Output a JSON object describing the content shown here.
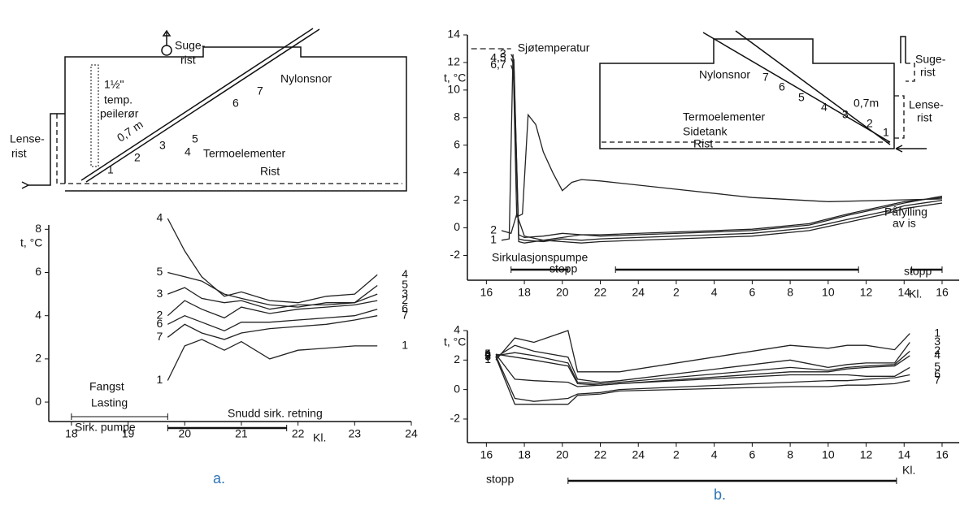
{
  "chart_data": [
    {
      "type": "line",
      "y_label": "t, °C",
      "x_label": "Kl.",
      "xlim": [
        17.6,
        24
      ],
      "xticks": [
        18,
        19,
        20,
        21,
        22,
        23,
        24
      ],
      "ylim": [
        -0.9,
        8.2
      ],
      "yticks": [
        0,
        2,
        4,
        6,
        8
      ],
      "x": [
        19.7,
        20.0,
        20.3,
        20.7,
        21.0,
        21.5,
        22.0,
        22.5,
        23.0,
        23.4
      ],
      "series": [
        {
          "name": "4",
          "color": "#222",
          "values": [
            8.5,
            7,
            5.8,
            4.9,
            5.1,
            4.7,
            4.6,
            4.9,
            5.0,
            5.9
          ]
        },
        {
          "name": "5",
          "color": "#222",
          "values": [
            6.0,
            5.8,
            5.6,
            5.0,
            4.8,
            4.5,
            4.4,
            4.6,
            4.6,
            5.4
          ]
        },
        {
          "name": "3",
          "color": "#222",
          "values": [
            5.0,
            5.3,
            4.8,
            4.6,
            4.7,
            4.3,
            4.5,
            4.5,
            4.6,
            5.0
          ]
        },
        {
          "name": "2",
          "color": "#222",
          "values": [
            4.0,
            4.7,
            4.3,
            3.9,
            4.4,
            4.1,
            4.3,
            4.4,
            4.5,
            4.7
          ]
        },
        {
          "name": "6",
          "color": "#222",
          "values": [
            3.6,
            4.0,
            3.7,
            3.3,
            3.7,
            3.7,
            3.8,
            3.9,
            4.0,
            4.3
          ]
        },
        {
          "name": "7",
          "color": "#222",
          "values": [
            3.0,
            3.6,
            3.2,
            2.9,
            3.2,
            3.4,
            3.5,
            3.6,
            3.8,
            4.0
          ]
        },
        {
          "name": "1",
          "color": "#222",
          "values": [
            1.0,
            2.6,
            2.9,
            2.4,
            2.8,
            2.0,
            2.4,
            2.5,
            2.6,
            2.6
          ]
        }
      ],
      "annotations": [
        "Fangst",
        "Lasting",
        "Sirk. pumpe",
        "Snudd sirk. retning"
      ],
      "intervals": [
        [
          18,
          19.7
        ],
        [
          19.7,
          21.8
        ]
      ]
    },
    {
      "type": "line",
      "y_label": "t, °C",
      "x_label": "Kl.",
      "xlim": [
        15,
        40.9
      ],
      "ylim": [
        -3.8,
        14
      ],
      "xticks": [
        16,
        18,
        20,
        22,
        24,
        {
          "value": 26,
          "label": "2"
        },
        {
          "value": 28,
          "label": "4"
        },
        {
          "value": 30,
          "label": "6"
        },
        {
          "value": 32,
          "label": "8"
        },
        {
          "value": 34,
          "label": "10"
        },
        {
          "value": 36,
          "label": "12"
        },
        {
          "value": 38,
          "label": "14"
        },
        {
          "value": 40,
          "label": "16"
        }
      ],
      "yticks": [
        -2,
        0,
        2,
        4,
        6,
        8,
        10,
        12,
        14
      ],
      "series": [
        {
          "name": "Sjøtemperatur",
          "color": "#222",
          "style": "dashed",
          "x": [
            15.2,
            17.3
          ],
          "values": [
            13,
            13
          ]
        },
        {
          "name": "1",
          "color": "#222",
          "x": [
            16.8,
            17.2,
            17.4,
            17.6,
            17.9,
            18.2,
            18.6,
            19,
            19.5,
            20,
            20.5,
            21,
            22,
            26,
            30,
            34,
            37,
            40
          ],
          "values": [
            -0.9,
            -0.8,
            12.6,
            0.8,
            1.0,
            8.2,
            7.5,
            5.5,
            4.0,
            2.7,
            3.3,
            3.5,
            3.4,
            2.8,
            2.2,
            1.9,
            2.0,
            2.1
          ]
        },
        {
          "name": "2",
          "color": "#222",
          "x": [
            16.8,
            17.3,
            17.6,
            18,
            19,
            20,
            21,
            22,
            30,
            33,
            35,
            37,
            38,
            40
          ],
          "values": [
            -0.2,
            -0.4,
            1.0,
            -0.6,
            -0.9,
            -0.7,
            -0.5,
            -0.6,
            -0.2,
            0.2,
            0.9,
            1.5,
            1.8,
            2.3
          ]
        },
        {
          "name": "3",
          "color": "#222",
          "x": [
            17.3,
            17.45,
            17.7,
            18,
            19,
            20,
            21,
            22,
            30,
            33,
            35,
            37,
            38,
            40
          ],
          "values": [
            12.6,
            12.2,
            -0.8,
            -0.9,
            -1.0,
            -0.8,
            -0.9,
            -0.8,
            -0.4,
            0.0,
            0.6,
            1.2,
            1.6,
            2.0
          ]
        },
        {
          "name": "4,5",
          "color": "#222",
          "x": [
            17.3,
            17.45,
            17.7,
            18,
            19,
            20,
            21,
            22,
            30,
            33,
            35,
            37,
            38,
            40
          ],
          "values": [
            12.3,
            11.8,
            -0.5,
            -0.7,
            -0.6,
            -0.4,
            -0.5,
            -0.5,
            -0.1,
            0.3,
            1.0,
            1.6,
            1.9,
            2.2
          ]
        },
        {
          "name": "6,7",
          "color": "#222",
          "x": [
            17.3,
            17.45,
            17.7,
            18,
            19,
            20,
            21,
            22,
            30,
            33,
            35,
            37,
            38,
            40
          ],
          "values": [
            11.8,
            11.2,
            -1.0,
            -1.1,
            -0.9,
            -1.0,
            -1.1,
            -1.0,
            -0.6,
            -0.2,
            0.4,
            1.0,
            1.4,
            1.8
          ]
        }
      ],
      "annotations": [
        "Sirkulasjonspumpe",
        "stopp",
        "stopp",
        "Påfylling",
        "av is"
      ],
      "intervals": [
        [
          17.3,
          20.3
        ],
        [
          22.8,
          35.6
        ],
        [
          38.4,
          40
        ]
      ]
    },
    {
      "type": "line",
      "y_label": "t, °C",
      "x_label": "Kl.",
      "xlim": [
        15,
        40.9
      ],
      "ylim": [
        -3.6,
        4
      ],
      "xticks": [
        16,
        18,
        20,
        22,
        24,
        {
          "value": 26,
          "label": "2"
        },
        {
          "value": 28,
          "label": "4"
        },
        {
          "value": 30,
          "label": "6"
        },
        {
          "value": 32,
          "label": "8"
        },
        {
          "value": 34,
          "label": "10"
        },
        {
          "value": 36,
          "label": "12"
        },
        {
          "value": 38,
          "label": "14"
        },
        {
          "value": 40,
          "label": "16"
        }
      ],
      "yticks": [
        -2,
        0,
        2,
        4
      ],
      "x": [
        16.5,
        17.5,
        18.5,
        20.3,
        20.8,
        22,
        23,
        32,
        34,
        35,
        36,
        37.5,
        38.3
      ],
      "series": [
        {
          "name": "1",
          "color": "#222",
          "values": [
            2.0,
            3.5,
            3.2,
            4.0,
            1.2,
            1.2,
            1.2,
            3.0,
            2.8,
            3.0,
            3.0,
            2.7,
            3.8
          ]
        },
        {
          "name": "3",
          "color": "#222",
          "values": [
            2.2,
            3.0,
            2.6,
            2.2,
            0.7,
            0.5,
            0.6,
            2.0,
            1.5,
            1.7,
            1.8,
            1.8,
            3.2
          ]
        },
        {
          "name": "2",
          "color": "#222",
          "values": [
            2.3,
            2.5,
            2.3,
            1.8,
            0.5,
            0.4,
            0.5,
            1.5,
            1.3,
            1.5,
            1.6,
            1.7,
            2.6
          ]
        },
        {
          "name": "4",
          "color": "#222",
          "values": [
            2.4,
            2.2,
            2.0,
            1.6,
            0.4,
            0.3,
            0.4,
            1.2,
            1.2,
            1.4,
            1.5,
            1.6,
            2.3
          ]
        },
        {
          "name": "5",
          "color": "#222",
          "values": [
            2.4,
            0.7,
            0.6,
            0.5,
            0.2,
            0.3,
            0.4,
            1.0,
            1.0,
            1.0,
            0.9,
            0.9,
            1.5
          ]
        },
        {
          "name": "6",
          "color": "#222",
          "values": [
            2.3,
            -0.6,
            -0.8,
            -0.6,
            -0.3,
            -0.2,
            0.0,
            0.5,
            0.6,
            0.6,
            0.7,
            0.8,
            1.0
          ]
        },
        {
          "name": "7",
          "color": "#222",
          "values": [
            2.2,
            -1.0,
            -1.0,
            -1.0,
            -0.4,
            -0.3,
            -0.1,
            0.2,
            0.2,
            0.3,
            0.3,
            0.4,
            0.6
          ]
        }
      ],
      "annotations": [
        "stopp"
      ],
      "intervals": [
        [
          20.3,
          37.6
        ]
      ]
    }
  ],
  "diagrams": [
    {
      "labels": [
        "Suge-",
        "rist",
        "Nylonsnor",
        "1½\"",
        "temp.",
        "peilerør",
        "Lense-",
        "rist",
        "0,7 m",
        "Termoelementer",
        "Rist",
        "1",
        "2",
        "3",
        "4",
        "5",
        "6",
        "7"
      ]
    },
    {
      "labels": [
        "Nylonsnor",
        "Termoelementer",
        "Sidetank",
        "Rist",
        "0,7m",
        "Suge-",
        "rist",
        "Lense-",
        "rist",
        "1",
        "2",
        "3",
        "4",
        "5",
        "6",
        "7"
      ]
    }
  ],
  "captions": [
    "a.",
    "b."
  ]
}
